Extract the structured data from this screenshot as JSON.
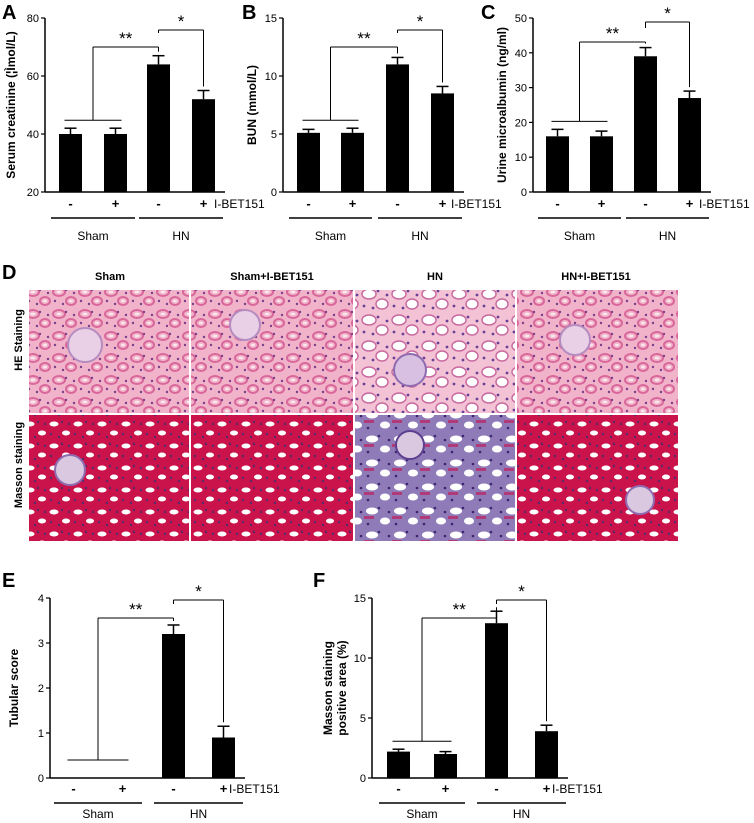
{
  "panel_letters": [
    "A",
    "B",
    "C",
    "D",
    "E",
    "F"
  ],
  "histology": {
    "column_titles": [
      "Sham",
      "Sham+I-BET151",
      "HN",
      "HN+I-BET151"
    ],
    "row_labels": [
      "HE  Staining",
      "Masson staining"
    ],
    "colors": {
      "he_background": "#f0b3c9",
      "he_tubule": "#e07aa3",
      "he_nuclei": "#7b3f8c",
      "masson_background": "#c9134a",
      "masson_fibrosis": "#8e7bb8",
      "masson_lumen": "#ffffff"
    }
  },
  "chart_data": [
    {
      "panel": "A",
      "type": "bar",
      "ylabel": "Serum creatinine (¦Ìmol/L)",
      "ylim": [
        20,
        80
      ],
      "yticks": [
        "20",
        "40",
        "60",
        "80"
      ],
      "categories": [
        "Sham -",
        "Sham +",
        "HN -",
        "HN +"
      ],
      "values": [
        40,
        40,
        64,
        52
      ],
      "errors": [
        2,
        2,
        3,
        3
      ],
      "treatment_signs": [
        "-",
        "+",
        "-",
        "+"
      ],
      "treatment_label": "I-BET151",
      "groups": [
        "Sham",
        "HN"
      ],
      "significance": [
        "**",
        "*"
      ]
    },
    {
      "panel": "B",
      "type": "bar",
      "ylabel": "BUN (mmol/L)",
      "ylim": [
        0,
        15
      ],
      "yticks": [
        "0",
        "5",
        "10",
        "15"
      ],
      "categories": [
        "Sham -",
        "Sham +",
        "HN -",
        "HN +"
      ],
      "values": [
        5.1,
        5.1,
        11.0,
        8.5
      ],
      "errors": [
        0.3,
        0.4,
        0.6,
        0.6
      ],
      "treatment_signs": [
        "-",
        "+",
        "-",
        "+"
      ],
      "treatment_label": "I-BET151",
      "groups": [
        "Sham",
        "HN"
      ],
      "significance": [
        "**",
        "*"
      ]
    },
    {
      "panel": "C",
      "type": "bar",
      "ylabel": "Urine microalbumin (ng/ml)",
      "ylim": [
        0,
        50
      ],
      "yticks": [
        "0",
        "10",
        "20",
        "30",
        "40",
        "50"
      ],
      "categories": [
        "Sham -",
        "Sham +",
        "HN -",
        "HN +"
      ],
      "values": [
        16,
        16,
        39,
        27
      ],
      "errors": [
        2,
        1.5,
        2.5,
        2
      ],
      "treatment_signs": [
        "-",
        "+",
        "-",
        "+"
      ],
      "treatment_label": "I-BET151",
      "groups": [
        "Sham",
        "HN"
      ],
      "significance": [
        "**",
        "*"
      ]
    },
    {
      "panel": "E",
      "type": "bar",
      "ylabel": "Tubular score",
      "ylim": [
        0,
        4
      ],
      "yticks": [
        "0",
        "1",
        "2",
        "3",
        "4"
      ],
      "categories": [
        "Sham -",
        "Sham +",
        "HN -",
        "HN +"
      ],
      "values": [
        0,
        0,
        3.2,
        0.9
      ],
      "errors": [
        0,
        0,
        0.2,
        0.25
      ],
      "treatment_signs": [
        "-",
        "+",
        "-",
        "+"
      ],
      "treatment_label": "I-BET151",
      "groups": [
        "Sham",
        "HN"
      ],
      "significance": [
        "**",
        "*"
      ]
    },
    {
      "panel": "F",
      "type": "bar",
      "ylabel": "Masson staining positive area (%)",
      "ylabel_lines": [
        "Masson staining",
        "positive area (%)"
      ],
      "ylim": [
        0,
        15
      ],
      "yticks": [
        "0",
        "5",
        "10",
        "15"
      ],
      "categories": [
        "Sham -",
        "Sham +",
        "HN -",
        "HN +"
      ],
      "values": [
        2.2,
        2.0,
        12.9,
        3.9
      ],
      "errors": [
        0.2,
        0.2,
        1.0,
        0.5
      ],
      "treatment_signs": [
        "-",
        "+",
        "-",
        "+"
      ],
      "treatment_label": "I-BET151",
      "groups": [
        "Sham",
        "HN"
      ],
      "significance": [
        "**",
        "*"
      ]
    }
  ]
}
